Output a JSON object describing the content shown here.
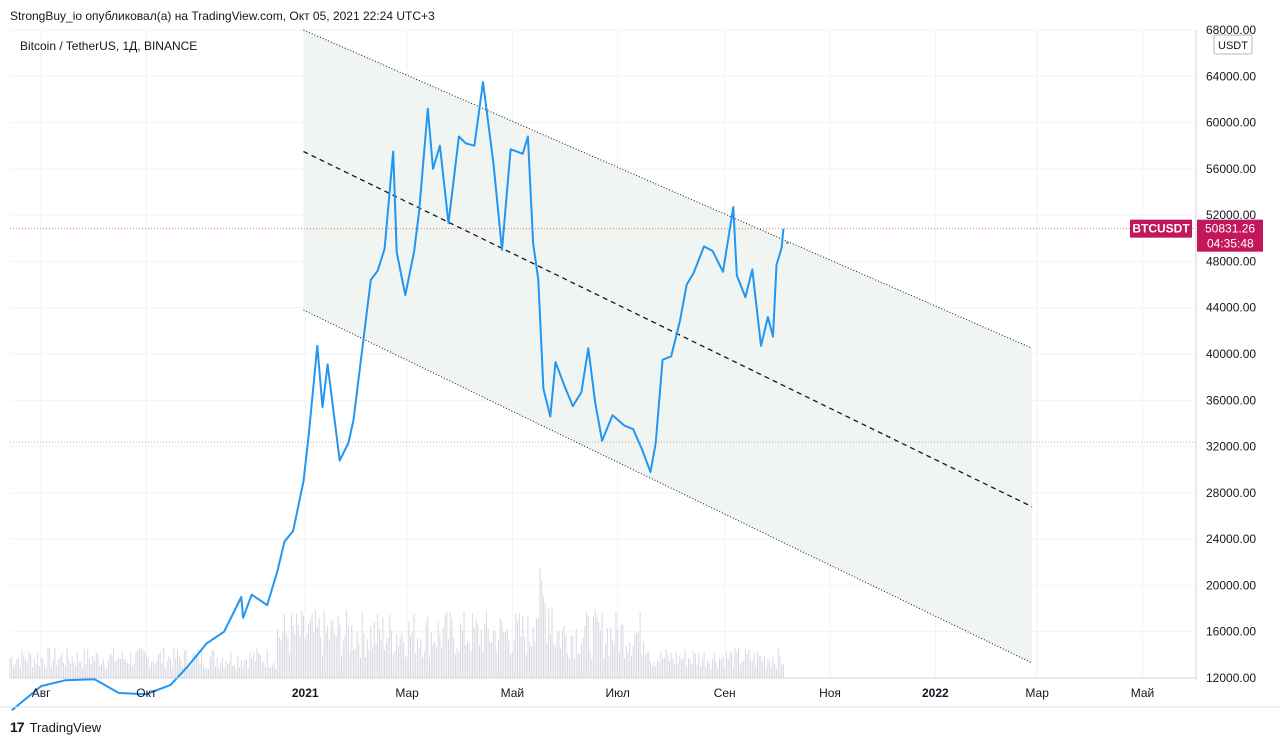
{
  "header": {
    "publish_line": "StrongBuy_io опубликовал(а) на TradingView.com, Окт 05, 2021 22:24 UTC+3"
  },
  "footer": {
    "brand": "TradingView",
    "logo_glyph": "17"
  },
  "chart_data": {
    "type": "line",
    "symbol_title": "Bitcoin / TetherUS, 1Д, BINANCE",
    "currency_badge": "USDT",
    "last_price_label": "BTCUSDT",
    "last_price": "50831.26",
    "countdown": "04:35:48",
    "colors": {
      "line": "#2196f3",
      "channel_fill": "#eef3f0",
      "price_tag": "#c2185b",
      "volume": "#d6d9e0",
      "grid": "#f0f3fa"
    },
    "ylim": [
      12000,
      68000
    ],
    "y_ticks": [
      "12000.00",
      "16000.00",
      "20000.00",
      "24000.00",
      "28000.00",
      "32000.00",
      "36000.00",
      "40000.00",
      "44000.00",
      "48000.00",
      "52000.00",
      "56000.00",
      "60000.00",
      "64000.00",
      "68000.00"
    ],
    "x_range": [
      "2020-07-14",
      "2022-06-01"
    ],
    "x_ticks": [
      {
        "date": "2020-08-01",
        "label": "Авг",
        "bold": false
      },
      {
        "date": "2020-10-01",
        "label": "Окт",
        "bold": false
      },
      {
        "date": "2021-01-01",
        "label": "2021",
        "bold": true
      },
      {
        "date": "2021-03-01",
        "label": "Мар",
        "bold": false
      },
      {
        "date": "2021-05-01",
        "label": "Май",
        "bold": false
      },
      {
        "date": "2021-07-01",
        "label": "Июл",
        "bold": false
      },
      {
        "date": "2021-09-01",
        "label": "Сен",
        "bold": false
      },
      {
        "date": "2021-11-01",
        "label": "Ноя",
        "bold": false
      },
      {
        "date": "2022-01-01",
        "label": "2022",
        "bold": true
      },
      {
        "date": "2022-03-01",
        "label": "Мар",
        "bold": false
      },
      {
        "date": "2022-05-01",
        "label": "Май",
        "bold": false
      }
    ],
    "horizontal_levels": [
      50831,
      32400
    ],
    "channel": {
      "start_date": "2020-12-31",
      "end_date": "2022-02-26",
      "upper": [
        68000,
        40500
      ],
      "middle": [
        57500,
        26800
      ],
      "lower": [
        43800,
        13300
      ]
    },
    "series": [
      {
        "points": [
          [
            "2020-07-15",
            9200
          ],
          [
            "2020-08-01",
            11300
          ],
          [
            "2020-08-15",
            11800
          ],
          [
            "2020-09-01",
            11900
          ],
          [
            "2020-09-15",
            10700
          ],
          [
            "2020-10-01",
            10600
          ],
          [
            "2020-10-15",
            11400
          ],
          [
            "2020-10-25",
            13000
          ],
          [
            "2020-11-05",
            15000
          ],
          [
            "2020-11-15",
            16000
          ],
          [
            "2020-11-25",
            19000
          ],
          [
            "2020-11-26",
            17200
          ],
          [
            "2020-12-01",
            19200
          ],
          [
            "2020-12-10",
            18300
          ],
          [
            "2020-12-16",
            21300
          ],
          [
            "2020-12-20",
            23800
          ],
          [
            "2020-12-25",
            24700
          ],
          [
            "2020-12-31",
            29000
          ],
          [
            "2021-01-03",
            33000
          ],
          [
            "2021-01-08",
            40700
          ],
          [
            "2021-01-11",
            35400
          ],
          [
            "2021-01-14",
            39100
          ],
          [
            "2021-01-21",
            30800
          ],
          [
            "2021-01-26",
            32300
          ],
          [
            "2021-01-29",
            34300
          ],
          [
            "2021-02-08",
            46400
          ],
          [
            "2021-02-12",
            47200
          ],
          [
            "2021-02-16",
            49100
          ],
          [
            "2021-02-21",
            57500
          ],
          [
            "2021-02-23",
            48800
          ],
          [
            "2021-02-28",
            45100
          ],
          [
            "2021-03-05",
            48800
          ],
          [
            "2021-03-08",
            52300
          ],
          [
            "2021-03-13",
            61200
          ],
          [
            "2021-03-16",
            56000
          ],
          [
            "2021-03-20",
            58000
          ],
          [
            "2021-03-25",
            51300
          ],
          [
            "2021-03-31",
            58800
          ],
          [
            "2021-04-04",
            58200
          ],
          [
            "2021-04-09",
            58000
          ],
          [
            "2021-04-14",
            63500
          ],
          [
            "2021-04-17",
            60000
          ],
          [
            "2021-04-20",
            56500
          ],
          [
            "2021-04-25",
            49000
          ],
          [
            "2021-04-30",
            57700
          ],
          [
            "2021-05-07",
            57300
          ],
          [
            "2021-05-10",
            58800
          ],
          [
            "2021-05-13",
            49600
          ],
          [
            "2021-05-16",
            46400
          ],
          [
            "2021-05-19",
            37000
          ],
          [
            "2021-05-23",
            34600
          ],
          [
            "2021-05-26",
            39300
          ],
          [
            "2021-05-31",
            37300
          ],
          [
            "2021-06-05",
            35500
          ],
          [
            "2021-06-10",
            36700
          ],
          [
            "2021-06-14",
            40500
          ],
          [
            "2021-06-18",
            35800
          ],
          [
            "2021-06-22",
            32500
          ],
          [
            "2021-06-28",
            34700
          ],
          [
            "2021-07-05",
            33800
          ],
          [
            "2021-07-10",
            33500
          ],
          [
            "2021-07-15",
            31800
          ],
          [
            "2021-07-20",
            29800
          ],
          [
            "2021-07-23",
            32300
          ],
          [
            "2021-07-27",
            39500
          ],
          [
            "2021-08-01",
            39800
          ],
          [
            "2021-08-06",
            42800
          ],
          [
            "2021-08-10",
            46000
          ],
          [
            "2021-08-14",
            47000
          ],
          [
            "2021-08-20",
            49300
          ],
          [
            "2021-08-25",
            48900
          ],
          [
            "2021-08-31",
            47100
          ],
          [
            "2021-09-06",
            52700
          ],
          [
            "2021-09-08",
            46800
          ],
          [
            "2021-09-13",
            44900
          ],
          [
            "2021-09-17",
            47300
          ],
          [
            "2021-09-22",
            40700
          ],
          [
            "2021-09-26",
            43200
          ],
          [
            "2021-09-29",
            41500
          ],
          [
            "2021-10-01",
            47700
          ],
          [
            "2021-10-04",
            49200
          ],
          [
            "2021-10-05",
            50831
          ]
        ]
      }
    ]
  }
}
